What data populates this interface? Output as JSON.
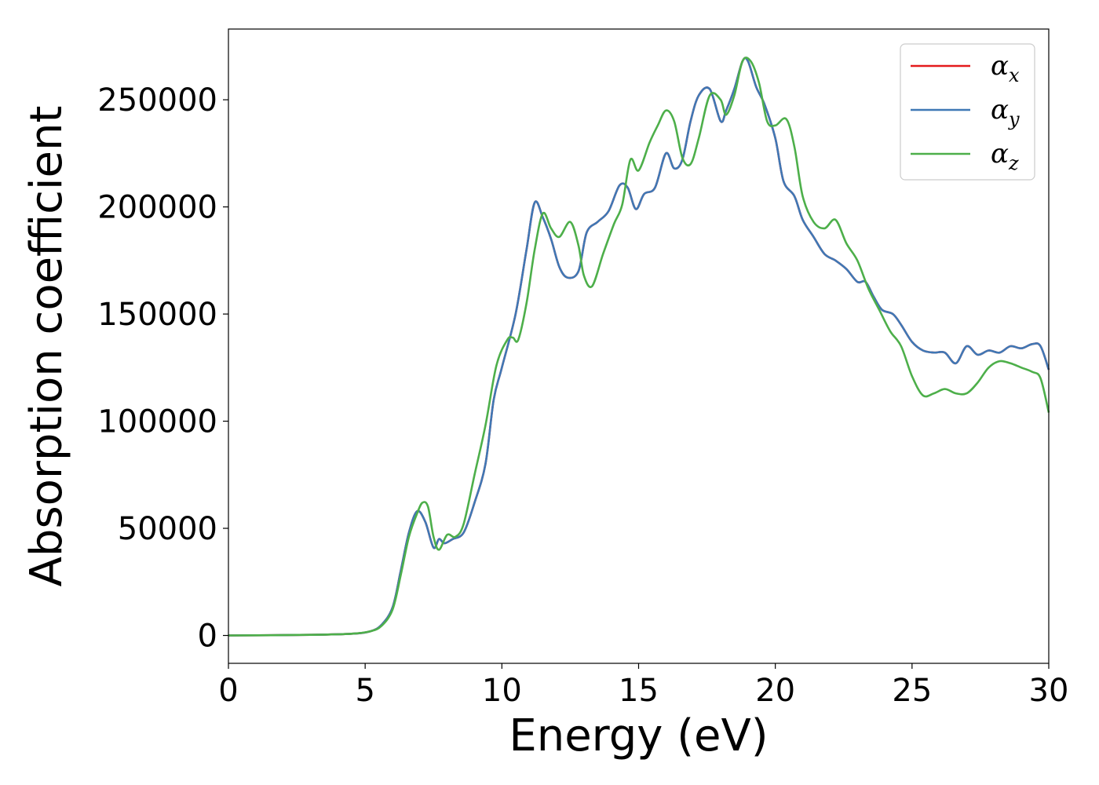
{
  "chart_data": {
    "type": "line",
    "xlabel": "Energy (eV)",
    "ylabel": "Absorption coefficient",
    "xlim": [
      0,
      30
    ],
    "ylim": [
      -13000,
      283000
    ],
    "xticks": [
      "0",
      "5",
      "10",
      "15",
      "20",
      "25",
      "30"
    ],
    "yticks": [
      "0",
      "50000",
      "100000",
      "150000",
      "200000",
      "250000"
    ],
    "grid": false,
    "legend_position": "top-right",
    "series": [
      {
        "name": "α",
        "subscript": "x",
        "color": "#e41a1c",
        "x": [
          0,
          3,
          4.5,
          5.2,
          5.6,
          6.0,
          6.3,
          6.6,
          6.9,
          7.2,
          7.5,
          7.7,
          7.9,
          8.2,
          8.6,
          9.0,
          9.4,
          9.7,
          10.0,
          10.5,
          10.9,
          11.2,
          11.5,
          11.8,
          12.1,
          12.4,
          12.8,
          13.1,
          13.5,
          13.9,
          14.3,
          14.6,
          14.9,
          15.2,
          15.6,
          16.0,
          16.3,
          16.6,
          16.9,
          17.2,
          17.6,
          18.0,
          18.2,
          18.5,
          18.8,
          19.0,
          19.3,
          19.6,
          20.0,
          20.3,
          20.7,
          21.0,
          21.4,
          21.8,
          22.2,
          22.6,
          23.0,
          23.3,
          23.6,
          23.9,
          24.3,
          24.6,
          25.0,
          25.4,
          25.8,
          26.2,
          26.6,
          27.0,
          27.4,
          27.8,
          28.2,
          28.6,
          29.0,
          29.4,
          29.7,
          30.0
        ],
        "values": [
          0,
          300,
          800,
          2000,
          5000,
          13000,
          30000,
          48000,
          58000,
          53000,
          41000,
          45000,
          43000,
          45000,
          48000,
          62000,
          80000,
          110000,
          125000,
          150000,
          180000,
          202000,
          195000,
          185000,
          172000,
          167000,
          170000,
          188000,
          193000,
          198000,
          210000,
          209000,
          199000,
          206000,
          209000,
          225000,
          218000,
          222000,
          240000,
          252000,
          255000,
          240000,
          245000,
          255000,
          268000,
          268000,
          256000,
          248000,
          232000,
          212000,
          205000,
          194000,
          186000,
          178000,
          175000,
          171000,
          165000,
          165000,
          158000,
          152000,
          150000,
          145000,
          137000,
          133000,
          132000,
          132000,
          127000,
          135000,
          131000,
          133000,
          132000,
          135000,
          134000,
          136000,
          135000,
          124000
        ]
      },
      {
        "name": "α",
        "subscript": "y",
        "color": "#3f78b5",
        "x": [
          0,
          3,
          4.5,
          5.2,
          5.6,
          6.0,
          6.3,
          6.6,
          6.9,
          7.2,
          7.5,
          7.7,
          7.9,
          8.2,
          8.6,
          9.0,
          9.4,
          9.7,
          10.0,
          10.5,
          10.9,
          11.2,
          11.5,
          11.8,
          12.1,
          12.4,
          12.8,
          13.1,
          13.5,
          13.9,
          14.3,
          14.6,
          14.9,
          15.2,
          15.6,
          16.0,
          16.3,
          16.6,
          16.9,
          17.2,
          17.6,
          18.0,
          18.2,
          18.5,
          18.8,
          19.0,
          19.3,
          19.6,
          20.0,
          20.3,
          20.7,
          21.0,
          21.4,
          21.8,
          22.2,
          22.6,
          23.0,
          23.3,
          23.6,
          23.9,
          24.3,
          24.6,
          25.0,
          25.4,
          25.8,
          26.2,
          26.6,
          27.0,
          27.4,
          27.8,
          28.2,
          28.6,
          29.0,
          29.4,
          29.7,
          30.0
        ],
        "values": [
          0,
          300,
          800,
          2000,
          5000,
          13000,
          30000,
          48000,
          58000,
          53000,
          41000,
          45000,
          43000,
          45000,
          48000,
          62000,
          80000,
          110000,
          125000,
          150000,
          180000,
          202000,
          195000,
          185000,
          172000,
          167000,
          170000,
          188000,
          193000,
          198000,
          210000,
          209000,
          199000,
          206000,
          209000,
          225000,
          218000,
          222000,
          240000,
          252000,
          255000,
          240000,
          245000,
          255000,
          268000,
          268000,
          256000,
          248000,
          232000,
          212000,
          205000,
          194000,
          186000,
          178000,
          175000,
          171000,
          165000,
          165000,
          158000,
          152000,
          150000,
          145000,
          137000,
          133000,
          132000,
          132000,
          127000,
          135000,
          131000,
          133000,
          132000,
          135000,
          134000,
          136000,
          135000,
          124000
        ]
      },
      {
        "name": "α",
        "subscript": "z",
        "color": "#4daf4a",
        "x": [
          0,
          3,
          4.5,
          5.2,
          5.6,
          6.0,
          6.3,
          6.6,
          6.9,
          7.1,
          7.3,
          7.5,
          7.7,
          8.0,
          8.3,
          8.6,
          9.0,
          9.4,
          9.8,
          10.2,
          10.4,
          10.6,
          10.9,
          11.2,
          11.5,
          11.8,
          12.1,
          12.5,
          12.8,
          13.0,
          13.3,
          13.7,
          14.1,
          14.4,
          14.7,
          15.0,
          15.4,
          15.7,
          16.0,
          16.3,
          16.6,
          16.9,
          17.2,
          17.6,
          18.0,
          18.2,
          18.5,
          18.8,
          19.1,
          19.4,
          19.7,
          20.0,
          20.4,
          20.7,
          21.0,
          21.4,
          21.8,
          22.2,
          22.6,
          23.0,
          23.4,
          23.8,
          24.2,
          24.6,
          25.0,
          25.4,
          25.8,
          26.2,
          26.6,
          27.0,
          27.4,
          27.8,
          28.2,
          28.6,
          29.0,
          29.4,
          29.7,
          30.0
        ],
        "values": [
          0,
          300,
          800,
          2000,
          4500,
          12000,
          28000,
          46000,
          57000,
          62000,
          60000,
          46000,
          40000,
          47000,
          46000,
          52000,
          75000,
          98000,
          126000,
          138000,
          139000,
          138000,
          155000,
          180000,
          197000,
          190000,
          186000,
          193000,
          182000,
          168000,
          163000,
          178000,
          192000,
          201000,
          222000,
          217000,
          230000,
          238000,
          245000,
          240000,
          223000,
          220000,
          232000,
          252000,
          250000,
          243000,
          252000,
          268000,
          268000,
          258000,
          240000,
          238000,
          241000,
          228000,
          205000,
          193000,
          190000,
          194000,
          183000,
          175000,
          162000,
          152000,
          142000,
          135000,
          121000,
          112000,
          113000,
          115000,
          113000,
          113000,
          118000,
          125000,
          128000,
          127000,
          125000,
          123000,
          120000,
          104000
        ]
      }
    ]
  }
}
